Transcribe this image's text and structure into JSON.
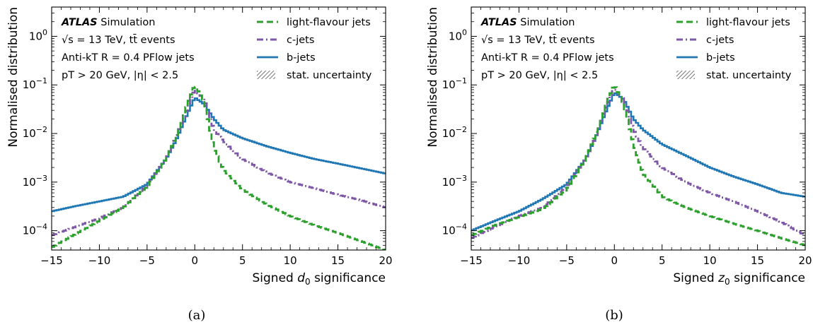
{
  "chart_data": [
    {
      "type": "line",
      "panel": "(a)",
      "xlabel": "Signed d0 significance",
      "ylabel": "Normalised distribution",
      "xlim": [
        -15,
        20
      ],
      "ylim": [
        4e-05,
        4
      ],
      "yscale": "log",
      "grid": false,
      "legend_position": "top-right",
      "x_ticks": [
        "−15",
        "−10",
        "−5",
        "0",
        "5",
        "10",
        "15",
        "20"
      ],
      "y_ticks": [
        {
          "base": "10",
          "exp": "0"
        },
        {
          "base": "10",
          "exp": "−1"
        },
        {
          "base": "10",
          "exp": "−2"
        },
        {
          "base": "10",
          "exp": "−3"
        },
        {
          "base": "10",
          "exp": "−4"
        }
      ],
      "info": {
        "experiment": "ATLAS",
        "status": "Simulation",
        "line1": "√s = 13 TeV, tt̄ events",
        "line2": "Anti-kT R = 0.4 PFlow jets",
        "line3": "pT > 20 GeV, |η| < 2.5"
      },
      "legend": [
        {
          "label": "light-flavour jets",
          "color": "#2ca02c",
          "style": "dashed"
        },
        {
          "label": "c-jets",
          "color": "#7e57a6",
          "style": "dashdot"
        },
        {
          "label": "b-jets",
          "color": "#1f77b4",
          "style": "solid"
        },
        {
          "label": "stat. uncertainty",
          "color": "#555555",
          "style": "hatch"
        }
      ],
      "series": [
        {
          "name": "light-flavour jets",
          "color": "#2ca02c",
          "style": "dashed",
          "x": [
            -15,
            -12.5,
            -10,
            -7.5,
            -5,
            -3,
            -2,
            -1,
            0,
            1,
            2,
            3,
            5,
            7.5,
            10,
            12.5,
            15,
            17.5,
            20
          ],
          "y": [
            4.5e-05,
            8.5e-05,
            0.00016,
            0.0003,
            0.0008,
            0.003,
            0.008,
            0.03,
            0.1,
            0.045,
            0.005,
            0.0018,
            0.0007,
            0.00035,
            0.0002,
            0.00013,
            9e-05,
            6e-05,
            4e-05
          ]
        },
        {
          "name": "c-jets",
          "color": "#7e57a6",
          "style": "dashdot",
          "x": [
            -15,
            -12.5,
            -10,
            -7.5,
            -5,
            -3,
            -2,
            -1,
            0,
            1,
            2,
            3,
            5,
            7.5,
            10,
            12.5,
            15,
            17.5,
            20
          ],
          "y": [
            8e-05,
            0.00012,
            0.00018,
            0.0003,
            0.00085,
            0.003,
            0.008,
            0.025,
            0.08,
            0.05,
            0.012,
            0.007,
            0.003,
            0.0016,
            0.001,
            0.00075,
            0.00055,
            0.00042,
            0.0003
          ]
        },
        {
          "name": "b-jets",
          "color": "#1f77b4",
          "style": "solid",
          "x": [
            -15,
            -12.5,
            -10,
            -7.5,
            -5,
            -3,
            -2,
            -1,
            0,
            1,
            2,
            3,
            5,
            7.5,
            10,
            12.5,
            15,
            17.5,
            20
          ],
          "y": [
            0.00025,
            0.00032,
            0.0004,
            0.0005,
            0.0009,
            0.003,
            0.007,
            0.02,
            0.055,
            0.04,
            0.02,
            0.012,
            0.008,
            0.0055,
            0.004,
            0.003,
            0.0024,
            0.0019,
            0.0015
          ]
        }
      ]
    },
    {
      "type": "line",
      "panel": "(b)",
      "xlabel": "Signed z0 significance",
      "ylabel": "Normalised distribution",
      "xlim": [
        -15,
        20
      ],
      "ylim": [
        4e-05,
        4
      ],
      "yscale": "log",
      "grid": false,
      "legend_position": "top-right",
      "x_ticks": [
        "−15",
        "−10",
        "−5",
        "0",
        "5",
        "10",
        "15",
        "20"
      ],
      "y_ticks": [
        {
          "base": "10",
          "exp": "0"
        },
        {
          "base": "10",
          "exp": "−1"
        },
        {
          "base": "10",
          "exp": "−2"
        },
        {
          "base": "10",
          "exp": "−3"
        },
        {
          "base": "10",
          "exp": "−4"
        }
      ],
      "info": {
        "experiment": "ATLAS",
        "status": "Simulation",
        "line1": "√s = 13 TeV, tt̄ events",
        "line2": "Anti-kT R = 0.4 PFlow jets",
        "line3": "pT > 20 GeV, |η| < 2.5"
      },
      "legend": [
        {
          "label": "light-flavour jets",
          "color": "#2ca02c",
          "style": "dashed"
        },
        {
          "label": "c-jets",
          "color": "#7e57a6",
          "style": "dashdot"
        },
        {
          "label": "b-jets",
          "color": "#1f77b4",
          "style": "solid"
        },
        {
          "label": "stat. uncertainty",
          "color": "#555555",
          "style": "hatch"
        }
      ],
      "series": [
        {
          "name": "light-flavour jets",
          "color": "#2ca02c",
          "style": "dashed",
          "x": [
            -15,
            -12.5,
            -10,
            -7.5,
            -5,
            -3,
            -2,
            -1,
            0,
            1,
            2,
            3,
            5,
            7.5,
            10,
            12.5,
            15,
            17.5,
            20
          ],
          "y": [
            8e-05,
            0.00013,
            0.00019,
            0.00028,
            0.0007,
            0.003,
            0.009,
            0.035,
            0.1,
            0.04,
            0.006,
            0.0015,
            0.0005,
            0.0003,
            0.0002,
            0.00014,
            0.0001,
            7e-05,
            5e-05
          ]
        },
        {
          "name": "c-jets",
          "color": "#7e57a6",
          "style": "dashdot",
          "x": [
            -15,
            -12.5,
            -10,
            -7.5,
            -5,
            -3,
            -2,
            -1,
            0,
            1,
            2,
            3,
            5,
            7.5,
            10,
            12.5,
            15,
            17.5,
            20
          ],
          "y": [
            7e-05,
            0.00012,
            0.0002,
            0.0003,
            0.0008,
            0.003,
            0.008,
            0.03,
            0.085,
            0.05,
            0.012,
            0.005,
            0.002,
            0.001,
            0.0006,
            0.0004,
            0.00025,
            0.00015,
            8e-05
          ]
        },
        {
          "name": "b-jets",
          "color": "#1f77b4",
          "style": "solid",
          "x": [
            -15,
            -12.5,
            -10,
            -7.5,
            -5,
            -3,
            -2,
            -1,
            0,
            1,
            2,
            3,
            5,
            7.5,
            10,
            12.5,
            15,
            17.5,
            20
          ],
          "y": [
            0.0001,
            0.00016,
            0.00025,
            0.00045,
            0.0009,
            0.003,
            0.008,
            0.025,
            0.07,
            0.05,
            0.02,
            0.012,
            0.006,
            0.0035,
            0.002,
            0.0013,
            0.0009,
            0.0006,
            0.0005
          ]
        }
      ]
    }
  ]
}
